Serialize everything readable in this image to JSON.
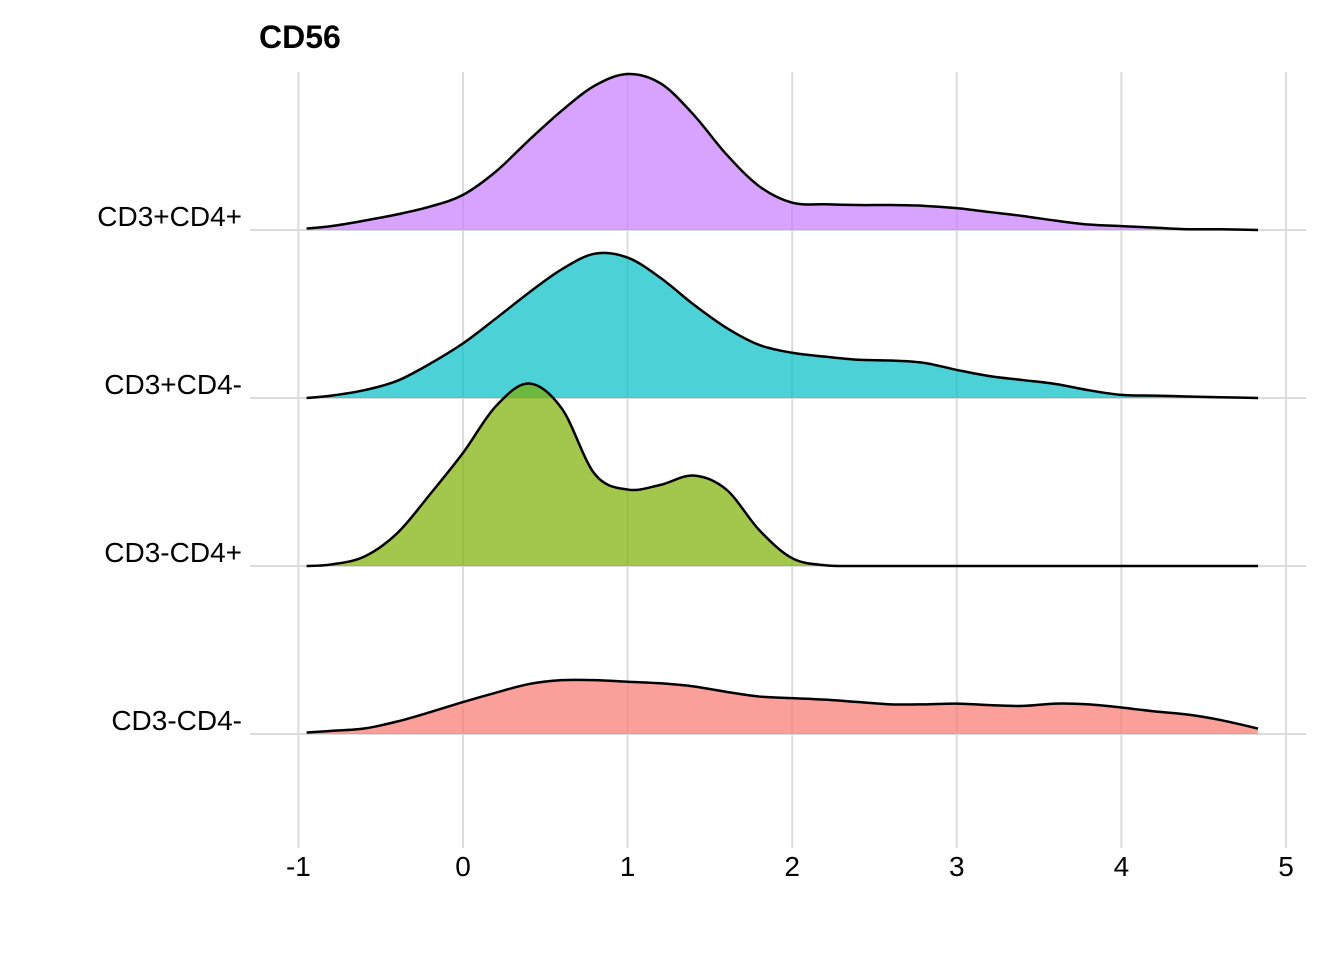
{
  "chart_data": {
    "type": "ridgeline",
    "title": "CD56",
    "xlabel": "",
    "ylabel": "",
    "x_ticks": [
      "-1",
      "0",
      "1",
      "2",
      "3",
      "4",
      "5"
    ],
    "x_tick_values": [
      -1,
      0,
      1,
      2,
      3,
      4,
      5
    ],
    "xlim": [
      -1.05,
      5.12
    ],
    "grid": true,
    "legend": "none",
    "x": [
      -0.95,
      -0.8,
      -0.6,
      -0.4,
      -0.2,
      0,
      0.2,
      0.4,
      0.6,
      0.8,
      1,
      1.2,
      1.4,
      1.6,
      1.8,
      2,
      2.2,
      2.4,
      2.6,
      2.8,
      3,
      3.2,
      3.4,
      3.6,
      3.8,
      4,
      4.2,
      4.4,
      4.6,
      4.83
    ],
    "series": [
      {
        "name": "CD3-CD4-",
        "color": "#F8766D",
        "values": [
          0.02,
          0.04,
          0.07,
          0.16,
          0.28,
          0.41,
          0.53,
          0.64,
          0.69,
          0.69,
          0.67,
          0.65,
          0.61,
          0.54,
          0.48,
          0.46,
          0.44,
          0.41,
          0.38,
          0.38,
          0.39,
          0.37,
          0.36,
          0.39,
          0.38,
          0.34,
          0.29,
          0.25,
          0.18,
          0.07
        ]
      },
      {
        "name": "CD3-CD4+",
        "color": "#7CAE00",
        "values": [
          0.0,
          0.02,
          0.12,
          0.42,
          0.92,
          1.45,
          2.05,
          2.34,
          2.02,
          1.18,
          0.98,
          1.04,
          1.16,
          0.98,
          0.46,
          0.1,
          0.01,
          0.0,
          0.0,
          0.0,
          0.0,
          0.0,
          0.0,
          0.0,
          0.0,
          0.0,
          0.0,
          0.0,
          0.0,
          0.0
        ]
      },
      {
        "name": "CD3+CD4-",
        "color": "#00BFC4",
        "values": [
          0.0,
          0.03,
          0.1,
          0.22,
          0.44,
          0.7,
          1.02,
          1.35,
          1.65,
          1.85,
          1.8,
          1.54,
          1.2,
          0.9,
          0.68,
          0.58,
          0.53,
          0.49,
          0.48,
          0.45,
          0.36,
          0.28,
          0.23,
          0.18,
          0.1,
          0.04,
          0.03,
          0.02,
          0.01,
          0.0
        ]
      },
      {
        "name": "CD3+CD4+",
        "color": "#C77CFF",
        "values": [
          0.02,
          0.05,
          0.12,
          0.2,
          0.3,
          0.45,
          0.75,
          1.15,
          1.53,
          1.85,
          2.0,
          1.88,
          1.48,
          0.97,
          0.56,
          0.35,
          0.33,
          0.32,
          0.32,
          0.31,
          0.28,
          0.23,
          0.18,
          0.12,
          0.07,
          0.05,
          0.03,
          0.01,
          0.01,
          0.0
        ]
      }
    ]
  }
}
